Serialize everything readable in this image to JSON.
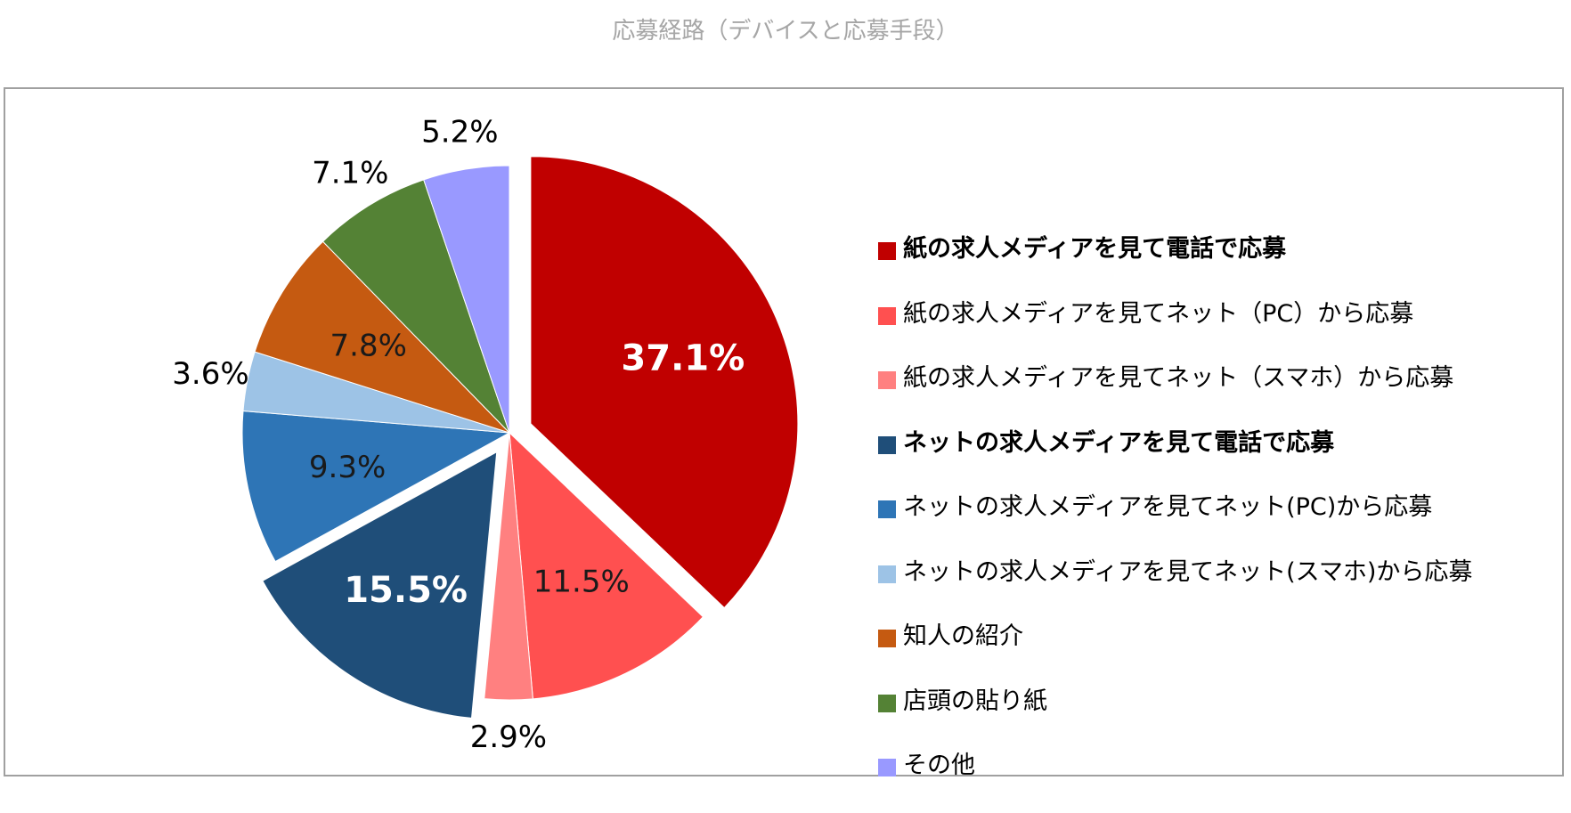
{
  "chart_data": {
    "type": "pie",
    "title": "応募経路（デバイスと応募手段）",
    "start_angle": "12 o'clock",
    "direction": "clockwise",
    "legend_position": "right",
    "slices": [
      {
        "label": "紙の求人メディアを見て電話で応募",
        "value": 37.1,
        "value_label": "37.1%",
        "color": "#c00000",
        "exploded": true,
        "label_bold": true,
        "label_inside": true,
        "label_color": "#ffffff"
      },
      {
        "label": "紙の求人メディアを見てネット（PC）から応募",
        "value": 11.5,
        "value_label": "11.5%",
        "color": "#ff5050",
        "exploded": false,
        "label_bold": false,
        "label_inside": true,
        "label_color": "#1a1a1a"
      },
      {
        "label": "紙の求人メディアを見てネット（スマホ）から応募",
        "value": 2.9,
        "value_label": "2.9%",
        "color": "#ff8080",
        "exploded": false,
        "label_bold": false,
        "label_inside": false,
        "label_color": "#000000"
      },
      {
        "label": "ネットの求人メディアを見て電話で応募",
        "value": 15.5,
        "value_label": "15.5%",
        "color": "#1f4e79",
        "exploded": true,
        "label_bold": true,
        "label_inside": true,
        "label_color": "#ffffff"
      },
      {
        "label": "ネットの求人メディアを見てネット(PC)から応募",
        "value": 9.3,
        "value_label": "9.3%",
        "color": "#2e75b6",
        "exploded": false,
        "label_bold": false,
        "label_inside": true,
        "label_color": "#1a1a1a"
      },
      {
        "label": "ネットの求人メディアを見てネット(スマホ)から応募",
        "value": 3.6,
        "value_label": "3.6%",
        "color": "#9dc3e6",
        "exploded": false,
        "label_bold": false,
        "label_inside": false,
        "label_color": "#000000"
      },
      {
        "label": "知人の紹介",
        "value": 7.8,
        "value_label": "7.8%",
        "color": "#c55a11",
        "exploded": false,
        "label_bold": false,
        "label_inside": true,
        "label_color": "#1a1a1a"
      },
      {
        "label": "店頭の貼り紙",
        "value": 7.1,
        "value_label": "7.1%",
        "color": "#548235",
        "exploded": false,
        "label_bold": false,
        "label_inside": false,
        "label_color": "#000000"
      },
      {
        "label": "その他",
        "value": 5.2,
        "value_label": "5.2%",
        "color": "#9999ff",
        "exploded": false,
        "label_bold": false,
        "label_inside": false,
        "label_color": "#000000"
      }
    ]
  }
}
